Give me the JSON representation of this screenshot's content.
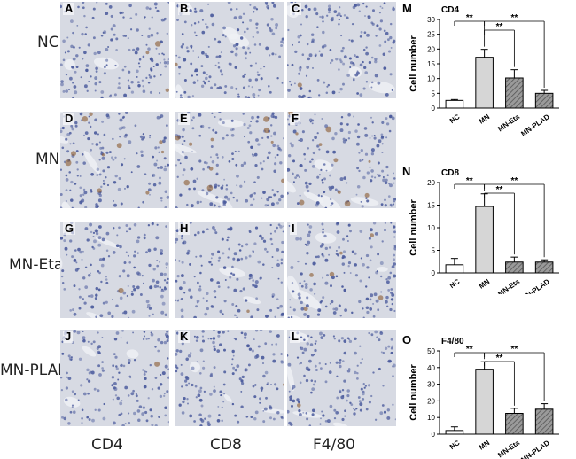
{
  "row_labels": [
    "NC",
    "MN",
    "MN-Eta",
    "MN-PLAD"
  ],
  "col_labels": [
    "CD4",
    "CD8",
    "F4/80"
  ],
  "panel_letters": [
    [
      "A",
      "B",
      "C"
    ],
    [
      "D",
      "E",
      "F"
    ],
    [
      "G",
      "H",
      "I"
    ],
    [
      "J",
      "K",
      "L"
    ]
  ],
  "colors": {
    "tissue_bg": "#d7dae3",
    "nuclei": "#4a5a9c",
    "stain_brown": "#8a5a2e",
    "bar_gray": "#d6d6d6",
    "bar_hatch": "#6e6e6e"
  },
  "chart_data": [
    {
      "type": "bar",
      "panel_letter": "M",
      "title": "CD4",
      "ylabel": "Cell number",
      "categories": [
        "NC",
        "MN",
        "MN-Eta",
        "MN-PLAD"
      ],
      "values": [
        2.6,
        17.2,
        10.2,
        5.0
      ],
      "errors": [
        0.3,
        2.7,
        2.8,
        1.0
      ],
      "fills": [
        "white",
        "gray",
        "hatch",
        "hatch"
      ],
      "ylim": [
        0,
        30
      ],
      "yticks": [
        "0",
        "5",
        "10",
        "15",
        "20",
        "25",
        "30"
      ],
      "significance": [
        {
          "from": 0,
          "to": 1,
          "label": "**"
        },
        {
          "from": 1,
          "to": 2,
          "label": "**"
        },
        {
          "from": 1,
          "to": 3,
          "label": "**"
        }
      ]
    },
    {
      "type": "bar",
      "panel_letter": "N",
      "title": "CD8",
      "ylabel": "Cell number",
      "categories": [
        "NC",
        "MN",
        "MN-Eta",
        "MN-PLAD"
      ],
      "values": [
        1.8,
        14.7,
        2.4,
        2.4
      ],
      "errors": [
        1.4,
        2.8,
        1.1,
        0.5
      ],
      "fills": [
        "white",
        "gray",
        "hatch",
        "hatch"
      ],
      "ylim": [
        0,
        20
      ],
      "yticks": [
        "0",
        "5",
        "10",
        "15",
        "20"
      ],
      "significance": [
        {
          "from": 0,
          "to": 1,
          "label": "**"
        },
        {
          "from": 1,
          "to": 2,
          "label": "**"
        },
        {
          "from": 1,
          "to": 3,
          "label": "**"
        }
      ]
    },
    {
      "type": "bar",
      "panel_letter": "O",
      "title": "F4/80",
      "ylabel": "Cell number",
      "categories": [
        "NC",
        "MN",
        "MN-Eta",
        "MN-PLAD"
      ],
      "values": [
        2.2,
        39.0,
        12.5,
        15.0
      ],
      "errors": [
        2.2,
        4.5,
        3.0,
        3.3
      ],
      "fills": [
        "white",
        "gray",
        "hatch",
        "hatch"
      ],
      "ylim": [
        0,
        50
      ],
      "yticks": [
        "0",
        "10",
        "20",
        "30",
        "40",
        "50"
      ],
      "significance": [
        {
          "from": 0,
          "to": 1,
          "label": "**"
        },
        {
          "from": 1,
          "to": 2,
          "label": "**"
        },
        {
          "from": 1,
          "to": 3,
          "label": "**"
        }
      ]
    }
  ]
}
